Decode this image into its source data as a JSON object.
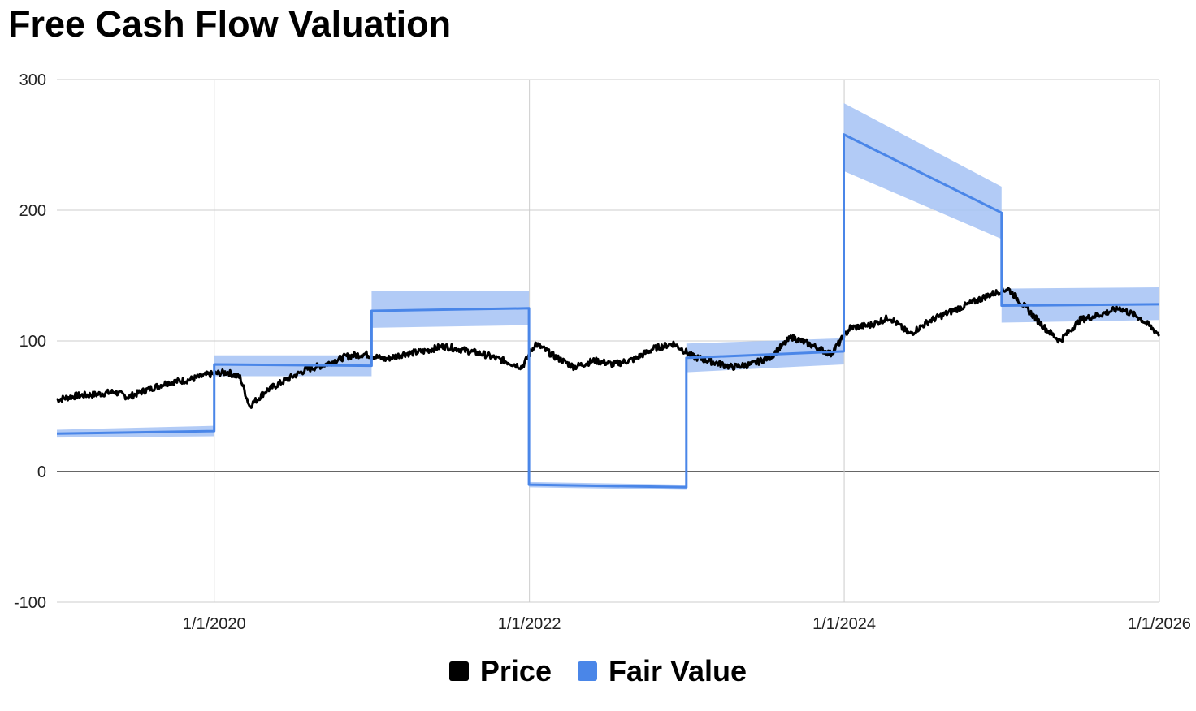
{
  "chart_data": {
    "type": "line",
    "title": "Free Cash Flow Valuation",
    "xlabel": "",
    "ylabel": "",
    "x_ticks": [
      "1/1/2020",
      "1/1/2022",
      "1/1/2024",
      "1/1/2026"
    ],
    "y_ticks": [
      "300",
      "200",
      "100",
      "0",
      "-100"
    ],
    "xlim": [
      "2019-01-01",
      "2026-01-01"
    ],
    "ylim": [
      -100,
      300
    ],
    "grid": true,
    "legend_position": "bottom",
    "series": [
      {
        "name": "Price",
        "color": "#000000",
        "x": [
          "2019-01-01",
          "2019-02-15",
          "2019-04-01",
          "2019-05-15",
          "2019-06-15",
          "2019-08-01",
          "2019-09-15",
          "2019-11-01",
          "2019-12-15",
          "2020-02-01",
          "2020-03-01",
          "2020-03-23",
          "2020-05-01",
          "2020-06-15",
          "2020-08-01",
          "2020-09-15",
          "2020-11-01",
          "2020-12-15",
          "2021-02-01",
          "2021-03-15",
          "2021-05-01",
          "2021-06-15",
          "2021-08-01",
          "2021-09-15",
          "2021-11-01",
          "2021-12-15",
          "2022-01-15",
          "2022-03-01",
          "2022-04-15",
          "2022-06-01",
          "2022-07-15",
          "2022-09-01",
          "2022-10-15",
          "2022-12-01",
          "2023-01-15",
          "2023-03-01",
          "2023-04-15",
          "2023-06-01",
          "2023-07-15",
          "2023-09-01",
          "2023-10-15",
          "2023-12-01",
          "2024-01-15",
          "2024-03-01",
          "2024-04-15",
          "2024-06-01",
          "2024-07-15",
          "2024-09-01",
          "2024-10-15",
          "2024-12-01",
          "2025-01-15",
          "2025-03-01",
          "2025-04-10",
          "2025-05-15",
          "2025-07-01",
          "2025-08-15",
          "2025-10-01",
          "2025-11-15",
          "2026-01-01"
        ],
        "values": [
          55,
          58,
          59,
          61,
          57,
          63,
          68,
          70,
          74,
          76,
          72,
          50,
          62,
          70,
          78,
          82,
          88,
          90,
          86,
          90,
          92,
          96,
          93,
          90,
          85,
          80,
          98,
          88,
          80,
          85,
          82,
          86,
          94,
          98,
          88,
          84,
          80,
          82,
          88,
          103,
          97,
          90,
          110,
          112,
          118,
          105,
          115,
          122,
          128,
          135,
          140,
          124,
          110,
          100,
          116,
          120,
          125,
          118,
          105
        ]
      },
      {
        "name": "Fair Value",
        "color": "#4a86e8",
        "x": [
          "2019-01-01",
          "2020-01-01",
          "2020-01-01",
          "2020-12-31",
          "2020-12-31",
          "2021-12-31",
          "2021-12-31",
          "2022-12-31",
          "2022-12-31",
          "2023-12-31",
          "2023-12-31",
          "2024-12-31",
          "2024-12-31",
          "2026-01-01"
        ],
        "values": [
          29,
          31,
          82,
          81,
          123,
          125,
          -10,
          -12,
          87,
          92,
          258,
          198,
          127,
          128
        ],
        "band_upper": [
          32,
          35,
          89,
          89,
          138,
          138,
          -8,
          -10,
          98,
          102,
          282,
          218,
          140,
          141
        ],
        "band_lower": [
          26,
          27,
          73,
          73,
          110,
          112,
          -12,
          -14,
          76,
          82,
          230,
          178,
          114,
          116
        ]
      }
    ]
  }
}
